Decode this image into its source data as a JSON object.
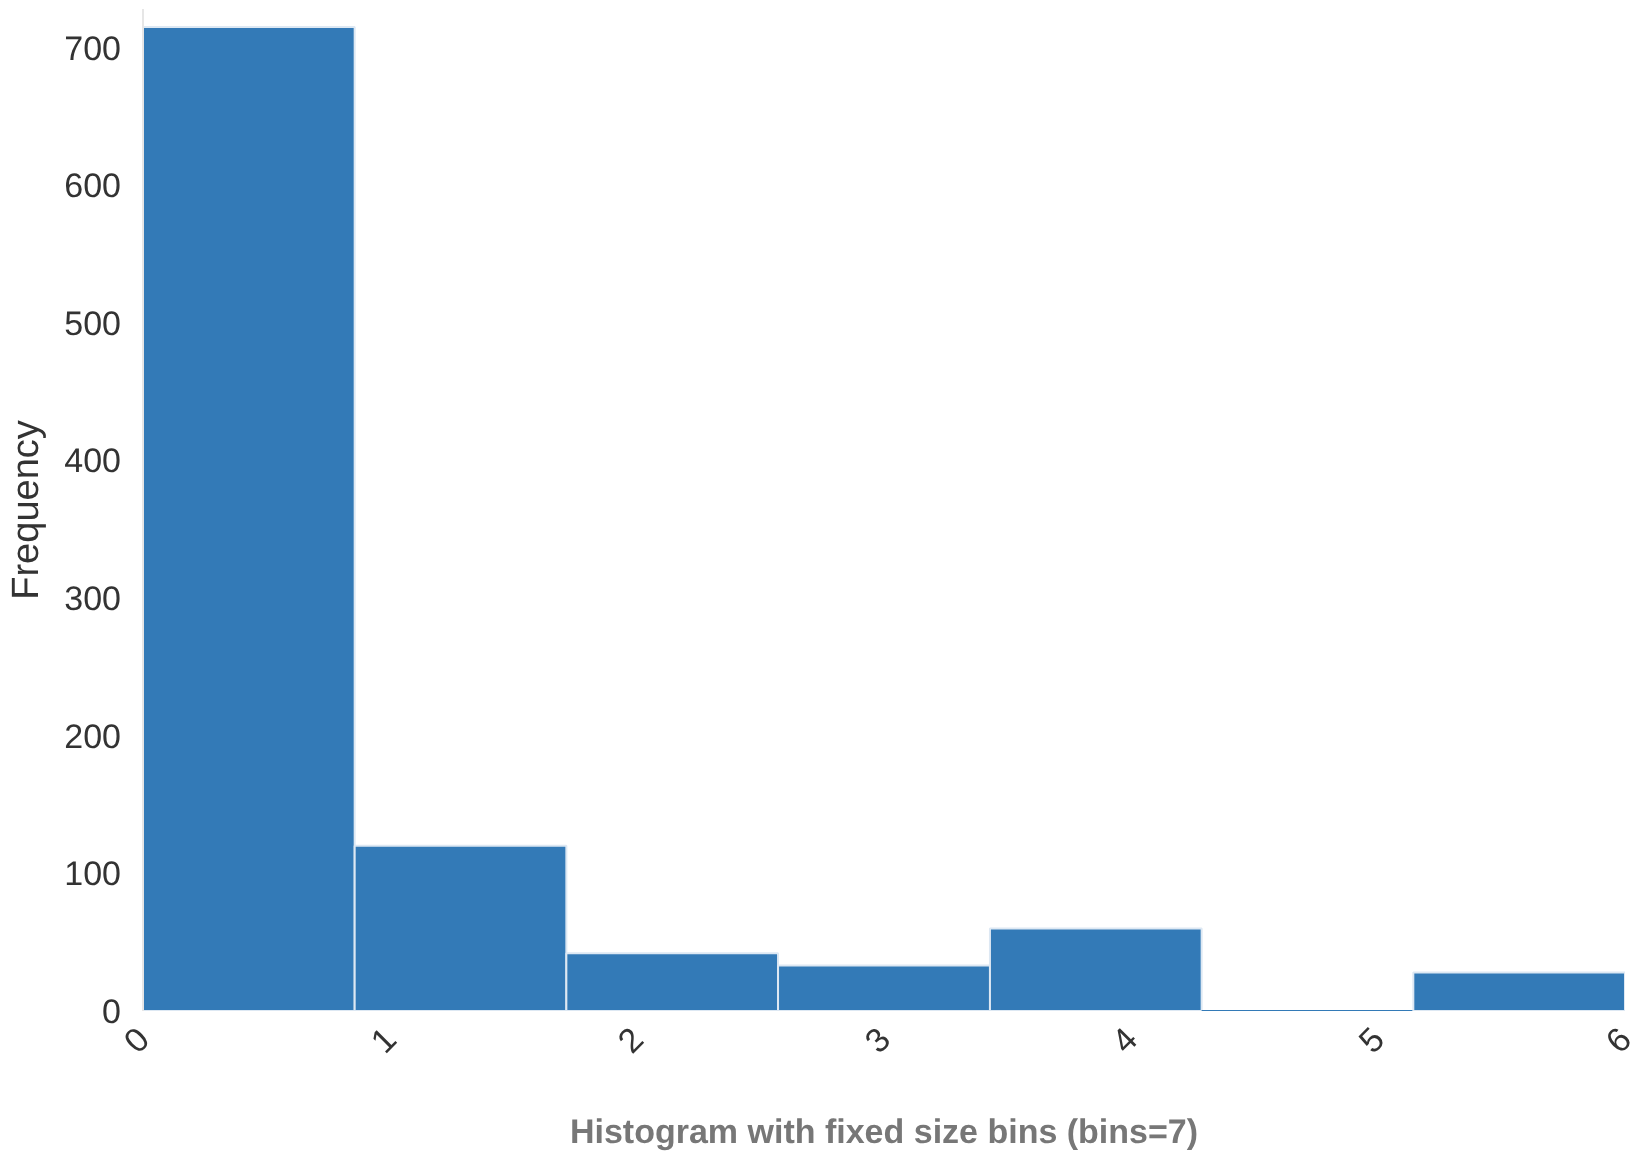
{
  "chart_data": {
    "type": "histogram",
    "xlabel": "Histogram with fixed size bins (bins=7)",
    "ylabel": "Frequency",
    "bins": [
      0,
      0.857,
      1.714,
      2.571,
      3.429,
      4.286,
      5.143,
      6
    ],
    "values": [
      715,
      120,
      42,
      33,
      60,
      0,
      28
    ],
    "color": "#337ab7",
    "xlim": [
      0,
      6
    ],
    "xticks": [
      0,
      1,
      2,
      3,
      4,
      5,
      6
    ],
    "ylim": [
      0,
      728
    ],
    "yticks": [
      0,
      100,
      200,
      300,
      400,
      500,
      600,
      700
    ],
    "grid": false
  }
}
